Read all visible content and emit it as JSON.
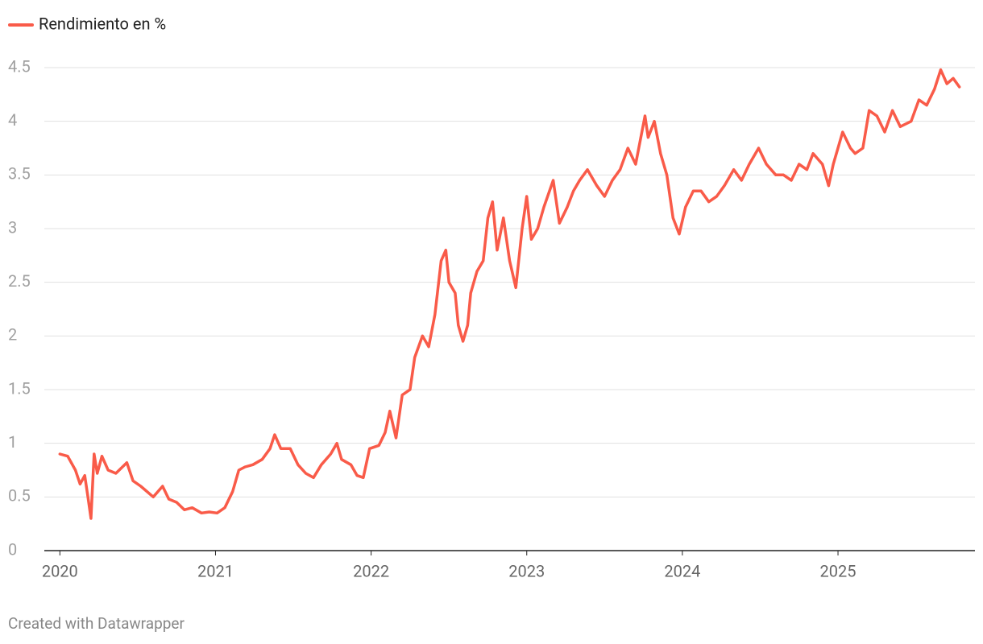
{
  "chart_data": {
    "type": "line",
    "legend": "top-left",
    "grid": true,
    "xlim": [
      2019.9,
      2025.88
    ],
    "xticks": [
      2020,
      2021,
      2022,
      2023,
      2024,
      2025
    ],
    "ylim": [
      0,
      4.5
    ],
    "yticks": [
      0,
      0.5,
      1,
      1.5,
      2,
      2.5,
      3,
      3.5,
      4,
      4.5
    ],
    "x": [
      2020.0,
      2020.05,
      2020.1,
      2020.13,
      2020.16,
      2020.18,
      2020.2,
      2020.22,
      2020.24,
      2020.27,
      2020.31,
      2020.36,
      2020.43,
      2020.47,
      2020.52,
      2020.6,
      2020.66,
      2020.7,
      2020.75,
      2020.8,
      2020.85,
      2020.91,
      2020.96,
      2021.01,
      2021.06,
      2021.11,
      2021.15,
      2021.19,
      2021.24,
      2021.3,
      2021.35,
      2021.38,
      2021.42,
      2021.48,
      2021.53,
      2021.58,
      2021.63,
      2021.68,
      2021.74,
      2021.78,
      2021.81,
      2021.87,
      2021.91,
      2021.95,
      2021.99,
      2022.05,
      2022.09,
      2022.12,
      2022.16,
      2022.2,
      2022.25,
      2022.28,
      2022.33,
      2022.37,
      2022.41,
      2022.45,
      2022.48,
      2022.5,
      2022.54,
      2022.56,
      2022.59,
      2022.62,
      2022.64,
      2022.68,
      2022.72,
      2022.75,
      2022.78,
      2022.81,
      2022.85,
      2022.89,
      2022.93,
      2022.97,
      2023.0,
      2023.03,
      2023.07,
      2023.11,
      2023.17,
      2023.21,
      2023.26,
      2023.3,
      2023.34,
      2023.39,
      2023.45,
      2023.5,
      2023.55,
      2023.6,
      2023.65,
      2023.7,
      2023.76,
      2023.78,
      2023.82,
      2023.86,
      2023.9,
      2023.94,
      2023.98,
      2024.02,
      2024.07,
      2024.12,
      2024.17,
      2024.22,
      2024.27,
      2024.33,
      2024.38,
      2024.43,
      2024.49,
      2024.54,
      2024.6,
      2024.65,
      2024.7,
      2024.75,
      2024.8,
      2024.84,
      2024.9,
      2024.94,
      2024.97,
      2025.03,
      2025.08,
      2025.11,
      2025.16,
      2025.2,
      2025.25,
      2025.3,
      2025.35,
      2025.4,
      2025.47,
      2025.52,
      2025.57,
      2025.62,
      2025.66,
      2025.7,
      2025.74,
      2025.78
    ],
    "series": [
      {
        "name": "Rendimiento en %",
        "color": "#f95b49",
        "values": [
          0.9,
          0.88,
          0.75,
          0.62,
          0.7,
          0.5,
          0.3,
          0.9,
          0.72,
          0.88,
          0.75,
          0.72,
          0.82,
          0.65,
          0.6,
          0.5,
          0.6,
          0.48,
          0.45,
          0.38,
          0.4,
          0.35,
          0.36,
          0.35,
          0.4,
          0.55,
          0.75,
          0.78,
          0.8,
          0.85,
          0.95,
          1.08,
          0.95,
          0.95,
          0.8,
          0.72,
          0.68,
          0.8,
          0.9,
          1.0,
          0.85,
          0.8,
          0.7,
          0.68,
          0.95,
          0.98,
          1.1,
          1.3,
          1.05,
          1.45,
          1.5,
          1.8,
          2.0,
          1.9,
          2.2,
          2.7,
          2.8,
          2.5,
          2.4,
          2.1,
          1.95,
          2.1,
          2.4,
          2.6,
          2.7,
          3.1,
          3.25,
          2.8,
          3.1,
          2.7,
          2.45,
          3.0,
          3.3,
          2.9,
          3.0,
          3.2,
          3.45,
          3.05,
          3.2,
          3.35,
          3.45,
          3.55,
          3.4,
          3.3,
          3.45,
          3.55,
          3.75,
          3.6,
          4.05,
          3.85,
          4.0,
          3.7,
          3.5,
          3.1,
          2.95,
          3.2,
          3.35,
          3.35,
          3.25,
          3.3,
          3.4,
          3.55,
          3.45,
          3.6,
          3.75,
          3.6,
          3.5,
          3.5,
          3.45,
          3.6,
          3.55,
          3.7,
          3.6,
          3.4,
          3.6,
          3.9,
          3.75,
          3.7,
          3.75,
          4.1,
          4.05,
          3.9,
          4.1,
          3.95,
          4.0,
          4.2,
          4.15,
          4.3,
          4.48,
          4.35,
          4.4,
          4.32
        ]
      }
    ],
    "footer": "Created with Datawrapper"
  }
}
